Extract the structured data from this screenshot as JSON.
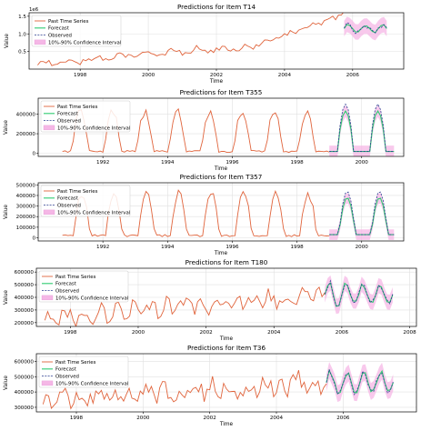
{
  "chart_data": [
    {
      "type": "line",
      "title": "Predictions for Item T14",
      "xlabel": "Time",
      "ylabel": "Value",
      "scale_note": "1e6",
      "xlim": [
        1996.5,
        2007.5
      ],
      "ylim": [
        0.0,
        1.6
      ],
      "x_ticks": [
        1998,
        2000,
        2002,
        2004,
        2006
      ],
      "y_ticks": [
        0.5,
        1.0,
        1.5
      ],
      "y_tick_labels": [
        "0.5",
        "1.0",
        "1.5"
      ],
      "legend": [
        "Past Time Series",
        "Forecast",
        "Observed",
        "10%-90% Confidence Interval"
      ],
      "legend_position": "upper-left",
      "grid": true,
      "past": {
        "start": 1996.75,
        "end": 2005.75,
        "base": 0.16,
        "trend": 0.08,
        "amplitude": 0.06,
        "period": 0.75,
        "noise": 0.09,
        "seed": 14,
        "end_level": 1.1
      },
      "forecast": {
        "start": 2005.75,
        "end": 2007.0,
        "level": 1.15,
        "amplitude": 0.12,
        "period": 0.5,
        "band": 0.22,
        "seed": 114
      }
    },
    {
      "type": "line",
      "title": "Predictions for Item T355",
      "xlabel": "Time",
      "ylabel": "Value",
      "xlim": [
        1990.0,
        2001.3
      ],
      "ylim": [
        -30000,
        560000
      ],
      "x_ticks": [
        1992,
        1994,
        1996,
        1998,
        2000
      ],
      "y_ticks": [
        0,
        200000,
        400000
      ],
      "y_tick_labels": [
        "0",
        "200000",
        "400000"
      ],
      "legend": [
        "Past Time Series",
        "Forecast",
        "Observed",
        "10%-90% Confidence Interval"
      ],
      "legend_position": "upper-left",
      "grid": true,
      "past": {
        "start": 1990.75,
        "end": 1999.0,
        "seasonal": true,
        "low": 20000,
        "high": 430000,
        "period": 1.0,
        "peak_phase": 0.55,
        "seed": 355
      },
      "forecast": {
        "start": 1999.0,
        "end": 2001.0,
        "seasonal": true,
        "low": 20000,
        "high": 430000,
        "obs_high": 500000,
        "period": 1.0,
        "peak_phase": 0.55,
        "band": 60000,
        "seed": 455
      }
    },
    {
      "type": "line",
      "title": "Predictions for Item T357",
      "xlabel": "Time",
      "ylabel": "Value",
      "xlim": [
        1990.0,
        2001.3
      ],
      "ylim": [
        -30000,
        520000
      ],
      "x_ticks": [
        1992,
        1994,
        1996,
        1998,
        2000
      ],
      "y_ticks": [
        0,
        100000,
        200000,
        300000,
        400000,
        500000
      ],
      "y_tick_labels": [
        "0",
        "100000",
        "200000",
        "300000",
        "400000",
        "500000"
      ],
      "legend": [
        "Past Time Series",
        "Forecast",
        "Observed",
        "10%-90% Confidence Interval"
      ],
      "legend_position": "upper-left",
      "grid": true,
      "past": {
        "start": 1990.75,
        "end": 1999.0,
        "seasonal": true,
        "low": 20000,
        "high": 420000,
        "period": 1.0,
        "peak_phase": 0.6,
        "seed": 357
      },
      "forecast": {
        "start": 1999.0,
        "end": 2001.0,
        "seasonal": true,
        "low": 30000,
        "high": 380000,
        "obs_high": 440000,
        "period": 1.0,
        "peak_phase": 0.6,
        "band": 50000,
        "seed": 457
      }
    },
    {
      "type": "line",
      "title": "Predictions for Item T180",
      "xlabel": "Time",
      "ylabel": "Value",
      "xlim": [
        1997.0,
        2008.2
      ],
      "ylim": [
        170000,
        630000
      ],
      "x_ticks": [
        1998,
        2000,
        2002,
        2004,
        2006,
        2008
      ],
      "y_ticks": [
        200000,
        300000,
        400000,
        500000,
        600000
      ],
      "y_tick_labels": [
        "200000",
        "300000",
        "400000",
        "500000",
        "600000"
      ],
      "legend": [
        "Past Time Series",
        "Forecast",
        "Observed",
        "10%-90% Confidence Interval"
      ],
      "legend_position": "upper-left",
      "grid": true,
      "past": {
        "start": 1997.25,
        "end": 2005.5,
        "base": 240000,
        "trend": 22000,
        "amplitude": 40000,
        "period": 0.5,
        "noise": 55000,
        "seed": 180
      },
      "forecast": {
        "start": 2005.5,
        "end": 2007.5,
        "level": 420000,
        "amplitude": 90000,
        "period": 0.5,
        "band": 60000,
        "seed": 280
      }
    },
    {
      "type": "line",
      "title": "Predictions for Item T36",
      "xlabel": "Time",
      "ylabel": "Value",
      "xlim": [
        1996.8,
        2008.2
      ],
      "ylim": [
        270000,
        650000
      ],
      "x_ticks": [
        1998,
        2000,
        2002,
        2004,
        2006
      ],
      "y_ticks": [
        300000,
        400000,
        500000,
        600000
      ],
      "y_tick_labels": [
        "300000",
        "400000",
        "500000",
        "600000"
      ],
      "legend": [
        "Past Time Series",
        "Forecast",
        "Observed",
        "10%-90% Confidence Interval"
      ],
      "legend_position": "upper-left",
      "grid": true,
      "past": {
        "start": 1997.0,
        "end": 2005.5,
        "base": 350000,
        "trend": 14000,
        "amplitude": 30000,
        "period": 0.5,
        "noise": 60000,
        "seed": 36
      },
      "forecast": {
        "start": 2005.5,
        "end": 2007.5,
        "level": 460000,
        "amplitude": 80000,
        "period": 0.5,
        "band": 55000,
        "seed": 136
      }
    }
  ],
  "colors": {
    "past": "#e0643c",
    "forecast": "#2ecc71",
    "observed": "#2c3e91",
    "band": "#f5b7e6",
    "grid": "#e0e0e0",
    "axis": "#000000"
  }
}
